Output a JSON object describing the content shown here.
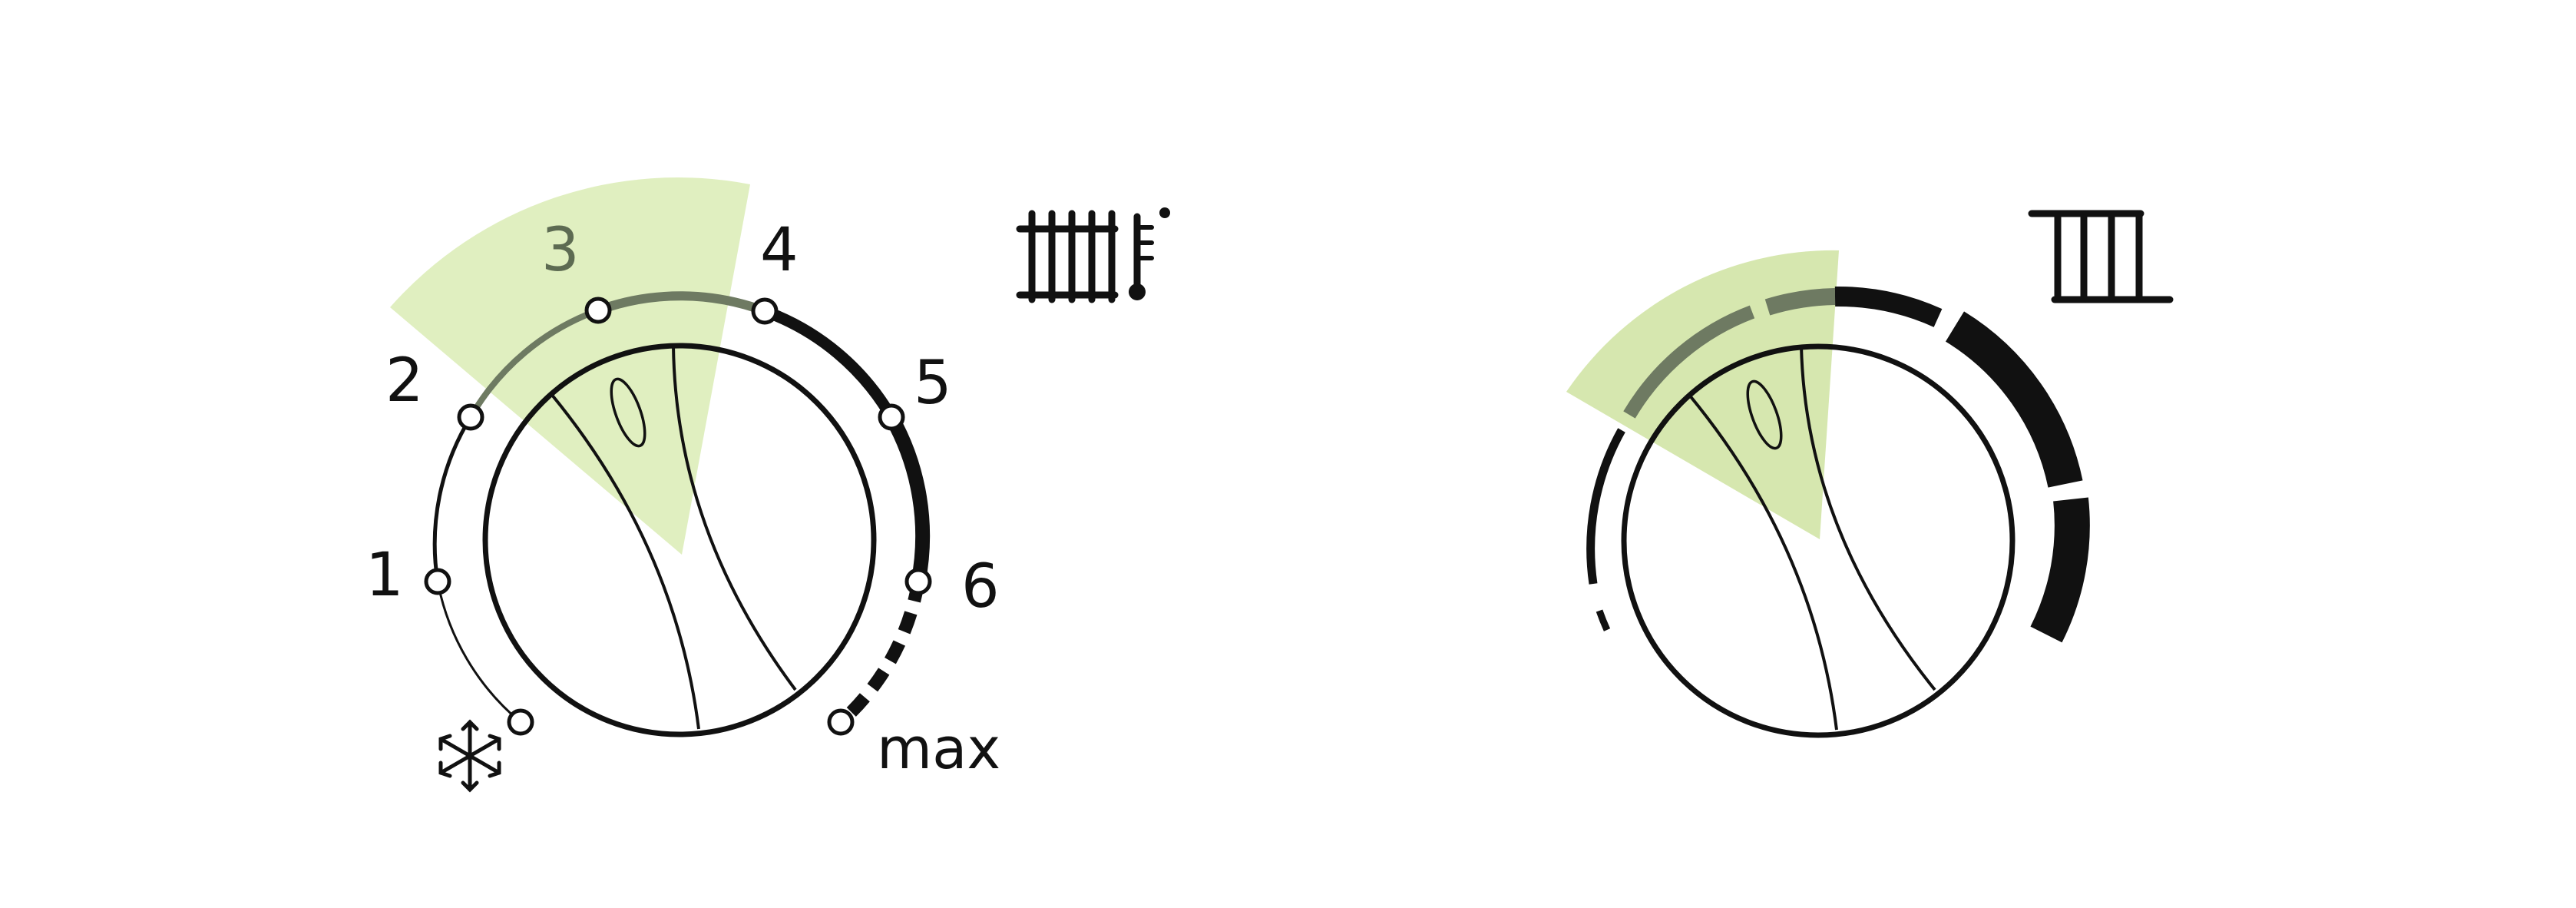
{
  "colors": {
    "highlight": "#cfe3a1",
    "highlight_dark": "#6e7a62",
    "stroke": "#111111",
    "background": "#ffffff"
  },
  "left_dial": {
    "scale_labels": [
      "1",
      "2",
      "3",
      "4",
      "5",
      "6"
    ],
    "max_label": "max",
    "frost_icon": "snowflake-icon",
    "device_icon": "radiator-with-thermometer-icon"
  },
  "right_dial": {
    "device_icon": "radiator-icon"
  }
}
